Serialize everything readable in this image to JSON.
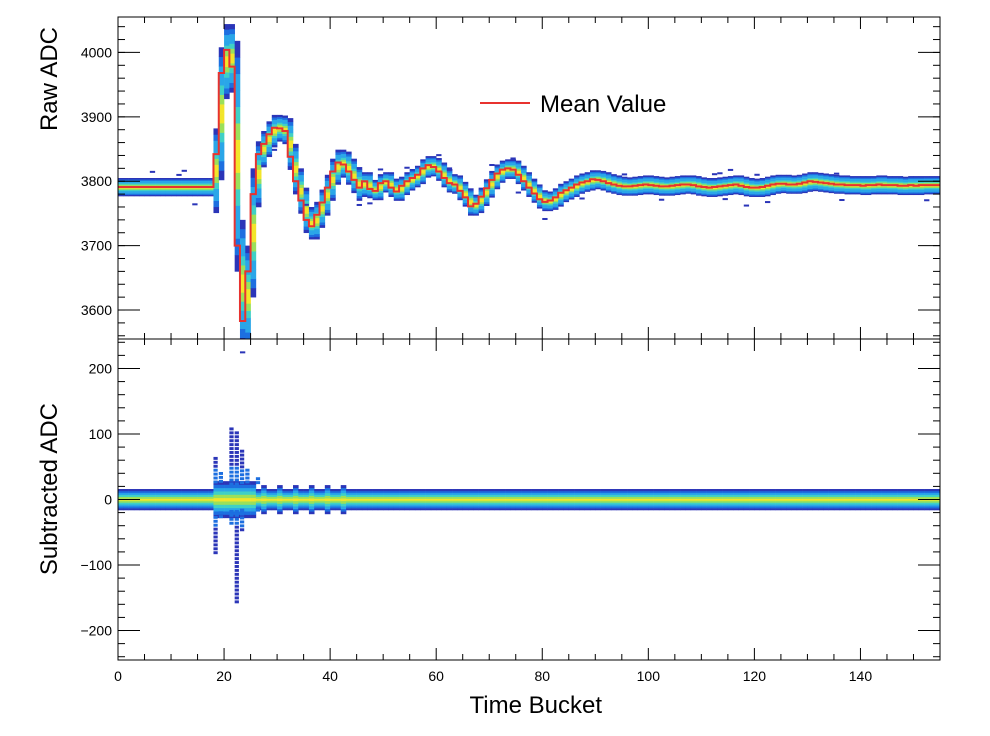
{
  "chart_data": [
    {
      "type": "heatmap",
      "title": "",
      "xlabel": "",
      "ylabel": "Raw ADC",
      "xlim": [
        0,
        155
      ],
      "ylim": [
        3555,
        4055
      ],
      "yticks": [
        3600,
        3700,
        3800,
        3900,
        4000
      ],
      "ytick_labels": [
        "3600",
        "3700",
        "3800",
        "3900",
        "4000"
      ],
      "colormap": [
        "#2b35b8",
        "#1d6fe0",
        "#2aa6e8",
        "#3fd0c6",
        "#9be05a",
        "#f2e52a"
      ],
      "heatmap_description": "2D histogram of raw ADC per time bucket, colour = counts",
      "legend": {
        "entries": [
          "Mean Value"
        ],
        "placement": "top-center"
      },
      "mean_value": {
        "name": "Mean Value",
        "color": "#e8322f",
        "x": [
          0,
          1,
          2,
          3,
          4,
          5,
          6,
          7,
          8,
          9,
          10,
          11,
          12,
          13,
          14,
          15,
          16,
          17,
          18,
          19,
          20,
          21,
          22,
          23,
          24,
          25,
          26,
          27,
          28,
          29,
          30,
          31,
          32,
          33,
          34,
          35,
          36,
          37,
          38,
          39,
          40,
          41,
          42,
          43,
          44,
          45,
          46,
          47,
          48,
          49,
          50,
          51,
          52,
          53,
          54,
          55,
          56,
          57,
          58,
          59,
          60,
          61,
          62,
          63,
          64,
          65,
          66,
          67,
          68,
          69,
          70,
          71,
          72,
          73,
          74,
          75,
          76,
          77,
          78,
          79,
          80,
          81,
          82,
          83,
          84,
          85,
          86,
          87,
          88,
          89,
          90,
          91,
          92,
          93,
          94,
          95,
          96,
          97,
          98,
          99,
          100,
          101,
          102,
          103,
          104,
          105,
          106,
          107,
          108,
          109,
          110,
          111,
          112,
          113,
          114,
          115,
          116,
          117,
          118,
          119,
          120,
          121,
          122,
          123,
          124,
          125,
          126,
          127,
          128,
          129,
          130,
          131,
          132,
          133,
          134,
          135,
          136,
          137,
          138,
          139,
          140,
          141,
          142,
          143,
          144,
          145,
          146,
          147,
          148,
          149,
          150,
          151,
          152,
          153,
          154
        ],
        "y": [
          3791,
          3791,
          3791,
          3791,
          3791,
          3791,
          3791,
          3791,
          3791,
          3791,
          3791,
          3791,
          3791,
          3791,
          3791,
          3791,
          3791,
          3791,
          3842,
          3968,
          4004,
          3978,
          3700,
          3583,
          3660,
          3780,
          3842,
          3858,
          3873,
          3883,
          3882,
          3878,
          3838,
          3800,
          3770,
          3740,
          3730,
          3748,
          3767,
          3790,
          3815,
          3829,
          3826,
          3815,
          3802,
          3790,
          3800,
          3788,
          3785,
          3797,
          3800,
          3790,
          3784,
          3793,
          3800,
          3805,
          3810,
          3820,
          3825,
          3822,
          3815,
          3805,
          3797,
          3795,
          3785,
          3775,
          3761,
          3765,
          3776,
          3789,
          3802,
          3812,
          3818,
          3820,
          3818,
          3810,
          3800,
          3790,
          3781,
          3772,
          3768,
          3770,
          3775,
          3782,
          3786,
          3790,
          3795,
          3798,
          3800,
          3803,
          3802,
          3800,
          3797,
          3795,
          3793,
          3792,
          3792,
          3793,
          3794,
          3795,
          3794,
          3793,
          3792,
          3792,
          3793,
          3794,
          3795,
          3795,
          3794,
          3792,
          3791,
          3790,
          3791,
          3792,
          3793,
          3794,
          3795,
          3793,
          3791,
          3790,
          3790,
          3791,
          3793,
          3795,
          3796,
          3796,
          3795,
          3795,
          3796,
          3798,
          3800,
          3799,
          3798,
          3797,
          3796,
          3795,
          3795,
          3794,
          3794,
          3794,
          3793,
          3794,
          3794,
          3795,
          3794,
          3794,
          3794,
          3793,
          3793,
          3794,
          3793,
          3794,
          3794,
          3794,
          3794
        ]
      }
    },
    {
      "type": "heatmap",
      "title": "",
      "xlabel": "Time Bucket",
      "ylabel": "Subtracted ADC",
      "xlim": [
        0,
        155
      ],
      "ylim": [
        -245,
        245
      ],
      "xticks": [
        0,
        20,
        40,
        60,
        80,
        100,
        120,
        140
      ],
      "xtick_labels": [
        "0",
        "20",
        "40",
        "60",
        "80",
        "100",
        "120",
        "140"
      ],
      "yticks": [
        -200,
        -100,
        0,
        100,
        200
      ],
      "ytick_labels": [
        "−200",
        "−100",
        "0",
        "100",
        "200"
      ],
      "colormap": [
        "#2b35b8",
        "#1d6fe0",
        "#2aa6e8",
        "#3fd0c6",
        "#9be05a",
        "#f2e52a"
      ],
      "heatmap_description": "2D histogram of pedestal-subtracted ADC per time bucket, centred on 0 with a spike near bucket 18-25"
    }
  ]
}
